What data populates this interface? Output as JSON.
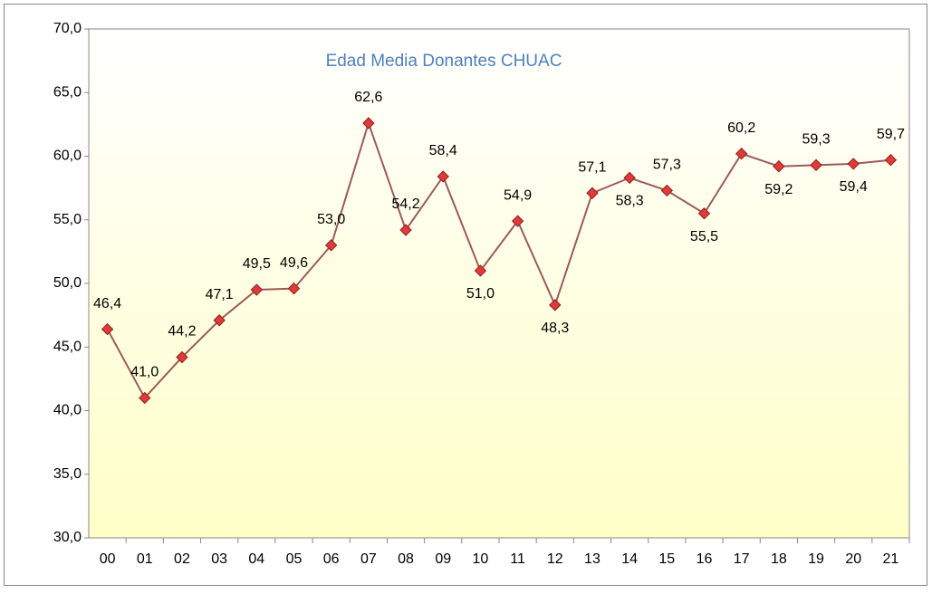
{
  "chart_data": {
    "type": "line",
    "title": "Edad Media Donantes CHUAC",
    "categories": [
      "00",
      "01",
      "02",
      "03",
      "04",
      "05",
      "06",
      "07",
      "08",
      "09",
      "10",
      "11",
      "12",
      "13",
      "14",
      "15",
      "16",
      "17",
      "18",
      "19",
      "20",
      "21"
    ],
    "series": [
      {
        "name": "Edad media",
        "color": "#9c5a5a",
        "values": [
          46.4,
          41.0,
          44.2,
          47.1,
          49.5,
          49.6,
          53.0,
          62.6,
          54.2,
          58.4,
          51.0,
          54.9,
          48.3,
          57.1,
          58.3,
          57.3,
          55.5,
          60.2,
          59.2,
          59.3,
          59.4,
          59.7
        ],
        "value_labels": [
          "46,4",
          "41,0",
          "44,2",
          "47,1",
          "49,5",
          "49,6",
          "53,0",
          "62,6",
          "54,2",
          "58,4",
          "51,0",
          "54,9",
          "48,3",
          "57,1",
          "58,3",
          "57,3",
          "55,5",
          "60,2",
          "59,2",
          "59,3",
          "59,4",
          "59,7"
        ]
      }
    ],
    "ylim": [
      30,
      70
    ],
    "yticks": [
      {
        "value": 30,
        "label": "30,0"
      },
      {
        "value": 35,
        "label": "35,0"
      },
      {
        "value": 40,
        "label": "40,0"
      },
      {
        "value": 45,
        "label": "45,0"
      },
      {
        "value": 50,
        "label": "50,0"
      },
      {
        "value": 55,
        "label": "55,0"
      },
      {
        "value": 60,
        "label": "60,0"
      },
      {
        "value": 65,
        "label": "65,0"
      },
      {
        "value": 70,
        "label": "70,0"
      }
    ],
    "marker_color": "#e03a3a"
  }
}
